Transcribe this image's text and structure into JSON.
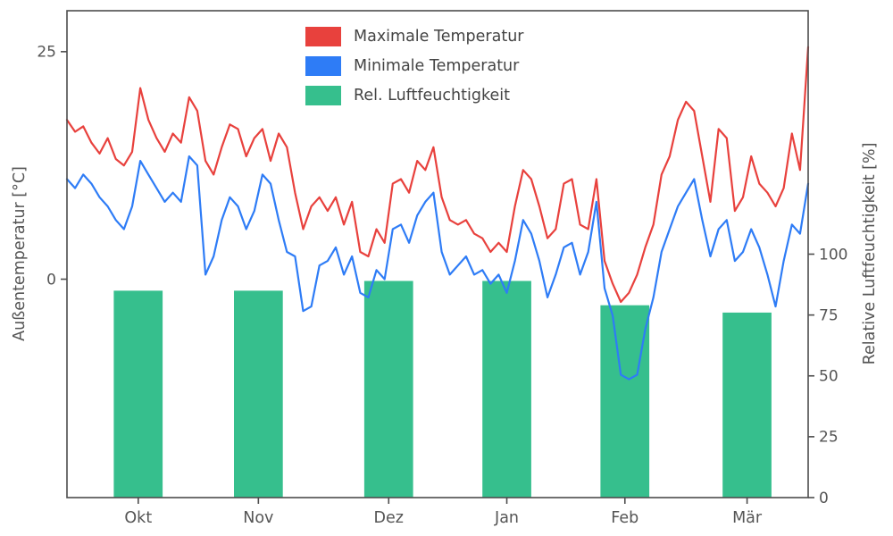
{
  "chart_data": {
    "type": "line+bar",
    "title": "",
    "grid": false,
    "legend_position": "upper center",
    "legend_frame": false,
    "xlim": [
      0,
      182
    ],
    "x_start": 0,
    "x_step": 2,
    "x_ticks": {
      "labels": [
        "Okt",
        "Nov",
        "Dez",
        "Jan",
        "Feb",
        "Mär"
      ],
      "positions_days": [
        17.5,
        47,
        79,
        108,
        137,
        167
      ]
    },
    "left_axis": {
      "label": "Außentemperatur [°C]",
      "lim": [
        -24,
        29.5
      ],
      "ticks": [
        0,
        25
      ]
    },
    "right_axis": {
      "label": "Relative Luftfeuchtigkeit [%]",
      "lim": [
        0,
        200
      ],
      "ticks": [
        0,
        25,
        50,
        75,
        100
      ]
    },
    "series": [
      {
        "name": "Maximale Temperatur",
        "data_name": "max-temp-line",
        "color": "#e8413d",
        "axis": "left",
        "values": [
          17.5,
          16.2,
          16.8,
          15.0,
          13.8,
          15.5,
          13.2,
          12.5,
          14.0,
          21.0,
          17.5,
          15.5,
          14.0,
          16.0,
          15.0,
          20.0,
          18.5,
          13.0,
          11.5,
          14.5,
          17.0,
          16.5,
          13.5,
          15.5,
          16.5,
          13.0,
          16.0,
          14.5,
          9.5,
          5.5,
          8.0,
          9.0,
          7.5,
          9.0,
          6.0,
          8.5,
          3.0,
          2.5,
          5.5,
          4.0,
          10.5,
          11.0,
          9.5,
          13.0,
          12.0,
          14.5,
          9.0,
          6.5,
          6.0,
          6.5,
          5.0,
          4.5,
          3.0,
          4.0,
          3.0,
          8.0,
          12.0,
          11.0,
          8.0,
          4.5,
          5.5,
          10.5,
          11.0,
          6.0,
          5.5,
          11.0,
          2.0,
          -0.5,
          -2.5,
          -1.5,
          0.5,
          3.5,
          6.0,
          11.5,
          13.5,
          17.5,
          19.5,
          18.5,
          13.5,
          8.5,
          16.5,
          15.5,
          7.5,
          9.0,
          13.5,
          10.5,
          9.5,
          8.0,
          10.0,
          16.0,
          12.0,
          25.5
        ]
      },
      {
        "name": "Minimale Temperatur",
        "data_name": "min-temp-line",
        "color": "#2e7cf6",
        "axis": "left",
        "values": [
          11.0,
          10.0,
          11.5,
          10.5,
          9.0,
          8.0,
          6.5,
          5.5,
          8.0,
          13.0,
          11.5,
          10.0,
          8.5,
          9.5,
          8.5,
          13.5,
          12.5,
          0.5,
          2.5,
          6.5,
          9.0,
          8.0,
          5.5,
          7.5,
          11.5,
          10.5,
          6.5,
          3.0,
          2.5,
          -3.5,
          -3.0,
          1.5,
          2.0,
          3.5,
          0.5,
          2.5,
          -1.5,
          -2.0,
          1.0,
          0.0,
          5.5,
          6.0,
          4.0,
          7.0,
          8.5,
          9.5,
          3.0,
          0.5,
          1.5,
          2.5,
          0.5,
          1.0,
          -0.5,
          0.5,
          -1.5,
          2.0,
          6.5,
          5.0,
          2.0,
          -2.0,
          0.5,
          3.5,
          4.0,
          0.5,
          3.0,
          8.5,
          -1.0,
          -4.0,
          -10.5,
          -11.0,
          -10.5,
          -5.5,
          -2.0,
          3.0,
          5.5,
          8.0,
          9.5,
          11.0,
          6.5,
          2.5,
          5.5,
          6.5,
          2.0,
          3.0,
          5.5,
          3.5,
          0.5,
          -3.0,
          2.0,
          6.0,
          5.0,
          10.5
        ]
      }
    ],
    "humidity": {
      "name": "Rel. Luftfeuchtigkeit",
      "color": "#36bf8d",
      "axis": "right",
      "categories": [
        "Okt",
        "Nov",
        "Dez",
        "Jan",
        "Feb",
        "Mär"
      ],
      "centers_days": [
        17.5,
        47,
        79,
        108,
        137,
        167
      ],
      "width_days": 12,
      "values": [
        85,
        85,
        89,
        89,
        79,
        76
      ]
    },
    "colors": {
      "spine": "#4d4d4d",
      "text": "#555555",
      "background": "#ffffff"
    }
  },
  "legend": {
    "items": [
      "Maximale Temperatur",
      "Minimale Temperatur",
      "Rel. Luftfeuchtigkeit"
    ]
  }
}
